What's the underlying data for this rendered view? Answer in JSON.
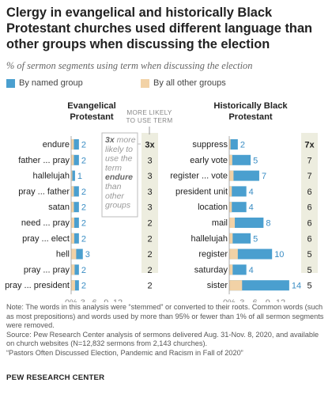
{
  "title": "Clergy in evangelical and historically Black Protestant churches used different language than other groups when discussing the election",
  "subtitle": "% of sermon segments using term when discussing the election",
  "legend": {
    "named": "By named group",
    "other": "By all other groups"
  },
  "colors": {
    "named": "#4a9fcf",
    "other": "#f2d2a6",
    "label": "#3a8dc4",
    "ratio_col_bg": "#ededdf",
    "axis": "#999999",
    "callout_text": "#999999"
  },
  "ratio_header": "MORE LIKELY TO USE TERM",
  "callout": {
    "line1_bold": "3x",
    "line1": "more",
    "lines": [
      "likely to",
      "use the",
      "term"
    ],
    "bold_term": "endure",
    "tail": [
      "than",
      "other",
      "groups"
    ]
  },
  "chart_data": [
    {
      "type": "bar",
      "title": "Evangelical Protestant",
      "categories": [
        "endure",
        "father ... pray",
        "hallelujah",
        "pray ... father",
        "satan",
        "need ... pray",
        "pray ... elect",
        "hell",
        "pray ... pray",
        "pray ... president"
      ],
      "series": [
        {
          "name": "By named group",
          "values": [
            2,
            2,
            1,
            2,
            2,
            2,
            2,
            3,
            2,
            2
          ]
        },
        {
          "name": "By all other groups",
          "values": [
            0.7,
            0.7,
            0.3,
            0.7,
            0.7,
            0.8,
            0.8,
            1.3,
            0.9,
            1.0
          ]
        }
      ],
      "ratio_labels": [
        "3x",
        "3",
        "3",
        "3",
        "3",
        "2",
        "2",
        "2",
        "2",
        "2"
      ],
      "x_ticks": [
        "0%",
        "3",
        "6",
        "9",
        "12"
      ],
      "xlim": [
        0,
        14
      ]
    },
    {
      "type": "bar",
      "title": "Historically Black Protestant",
      "categories": [
        "suppress",
        "early vote",
        "register ... vote",
        "president unit",
        "location",
        "mail",
        "hallelujah",
        "register",
        "saturday",
        "sister"
      ],
      "series": [
        {
          "name": "By named group",
          "values": [
            2,
            5,
            7,
            4,
            4,
            8,
            5,
            10,
            4,
            14
          ]
        },
        {
          "name": "By all other groups",
          "values": [
            0.3,
            0.7,
            1.0,
            0.6,
            0.6,
            1.3,
            0.8,
            2.0,
            0.8,
            3.0
          ]
        }
      ],
      "ratio_labels": [
        "7x",
        "7",
        "7",
        "6",
        "6",
        "6",
        "6",
        "5",
        "5",
        "5"
      ],
      "x_ticks": [
        "0%",
        "3",
        "6",
        "9",
        "12"
      ],
      "xlim": [
        0,
        14
      ]
    }
  ],
  "notes": [
    "Note: The words in this analysis were “stemmed” or converted to their roots. Common words (such as most prepositions) and words used by more than 95% or fewer than 1% of all sermon segments were removed.",
    "Source: Pew Research Center analysis of sermons delivered Aug. 31-Nov. 8, 2020, and available on church websites (N=12,832 sermons from 2,143 churches).",
    "“Pastors Often Discussed Election, Pandemic and Racism in Fall of 2020”"
  ],
  "footer": "PEW RESEARCH CENTER"
}
